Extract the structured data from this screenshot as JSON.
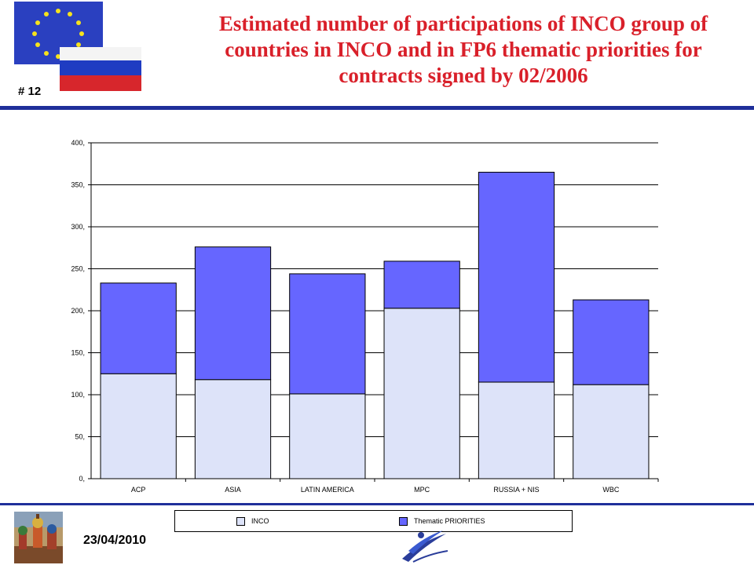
{
  "header": {
    "title": "Estimated number of participations of INCO group of countries in INCO and in FP6 thematic priorities for contracts signed by 02/2006",
    "slide_number": "# 12"
  },
  "footer": {
    "date": "23/04/2010"
  },
  "colors": {
    "inco": "#dde3f9",
    "thematic": "#6666ff",
    "rule": "#1f2f9a",
    "title": "#d9202a"
  },
  "icons": {
    "top_left": "eu-russia-flags-icon",
    "bottom_left": "kremlin-photo-icon",
    "bottom_center": "swoosh-logo-icon"
  },
  "chart_data": {
    "type": "bar",
    "stacked": true,
    "categories": [
      "ACP",
      "ASIA",
      "LATIN AMERICA",
      "MPC",
      "RUSSIA + NIS",
      "WBC"
    ],
    "series": [
      {
        "name": "INCO",
        "values": [
          125,
          118,
          101,
          203,
          115,
          112
        ]
      },
      {
        "name": "Thematic PRIORITIES",
        "values": [
          108,
          158,
          143,
          56,
          250,
          101
        ]
      }
    ],
    "ylim": [
      0,
      400
    ],
    "yticks": [
      "0,",
      "50,",
      "100,",
      "150,",
      "200,",
      "250,",
      "300,",
      "350,",
      "400,"
    ],
    "grid": true,
    "legend": "bottom"
  }
}
